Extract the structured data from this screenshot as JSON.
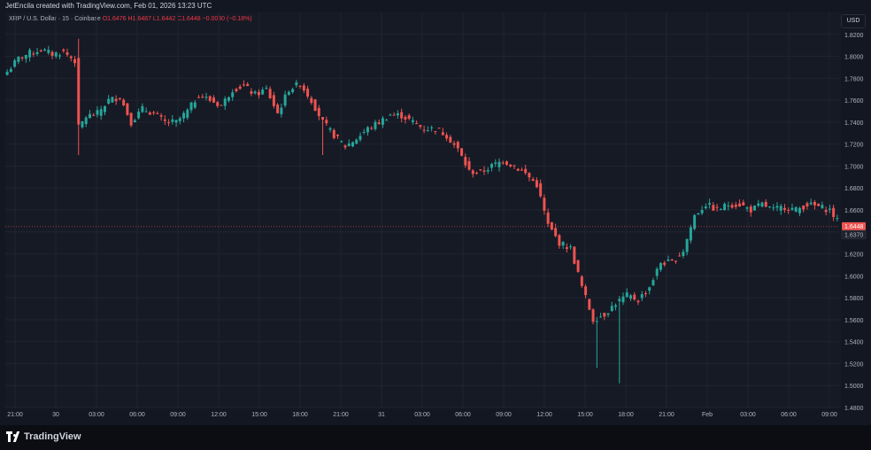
{
  "header": {
    "caption": "JetEncila created with TradingView.com, Feb 01, 2026 13:23 UTC"
  },
  "legend": {
    "symbol": "XRP / U.S. Dollar · 15 · Coinbase",
    "ohlc": "O1.6476 H1.6487 L1.6442 C1.6448 −0.0030 (−0.18%)"
  },
  "currency_button": "USD",
  "price_labels": {
    "current": "1.6448",
    "secondary": "1.6370"
  },
  "footer": {
    "brand": "TradingView"
  },
  "colors": {
    "up": "#26a69a",
    "down": "#ef5350",
    "background": "#161a25",
    "grid": "#1f2430",
    "axis_text": "#b2b5be"
  },
  "chart_data": {
    "type": "candlestick",
    "title": "XRP / U.S. Dollar · 15 · Coinbase",
    "ylim": [
      1.48,
      1.84
    ],
    "yticks": [
      "1.4800",
      "1.5000",
      "1.5200",
      "1.5400",
      "1.5600",
      "1.5800",
      "1.6000",
      "1.6200",
      "1.6400",
      "1.6600",
      "1.6800",
      "1.7000",
      "1.7200",
      "1.7400",
      "1.7600",
      "1.7800",
      "1.8000",
      "1.8200"
    ],
    "xticks": [
      "21:00",
      "30",
      "03:00",
      "06:00",
      "09:00",
      "12:00",
      "15:00",
      "18:00",
      "21:00",
      "31",
      "03:00",
      "06:00",
      "09:00",
      "12:00",
      "15:00",
      "18:00",
      "21:00",
      "Feb",
      "03:00",
      "06:00",
      "09:00"
    ],
    "grid": true,
    "series": [
      {
        "t": 0,
        "v": 1.786
      },
      {
        "t": 3,
        "v": 1.798
      },
      {
        "t": 6,
        "v": 1.803
      },
      {
        "t": 9,
        "v": 1.806
      },
      {
        "t": 12,
        "v": 1.802
      },
      {
        "t": 15,
        "v": 1.804
      },
      {
        "t": 18,
        "v": 1.796
      },
      {
        "t": 19,
        "v": 1.735
      },
      {
        "t": 21,
        "v": 1.745
      },
      {
        "t": 24,
        "v": 1.748
      },
      {
        "t": 27,
        "v": 1.76
      },
      {
        "t": 30,
        "v": 1.763
      },
      {
        "t": 33,
        "v": 1.74
      },
      {
        "t": 36,
        "v": 1.752
      },
      {
        "t": 39,
        "v": 1.748
      },
      {
        "t": 42,
        "v": 1.74
      },
      {
        "t": 45,
        "v": 1.74
      },
      {
        "t": 48,
        "v": 1.75
      },
      {
        "t": 51,
        "v": 1.765
      },
      {
        "t": 54,
        "v": 1.76
      },
      {
        "t": 57,
        "v": 1.755
      },
      {
        "t": 60,
        "v": 1.77
      },
      {
        "t": 63,
        "v": 1.773
      },
      {
        "t": 66,
        "v": 1.765
      },
      {
        "t": 69,
        "v": 1.77
      },
      {
        "t": 72,
        "v": 1.748
      },
      {
        "t": 75,
        "v": 1.77
      },
      {
        "t": 78,
        "v": 1.775
      },
      {
        "t": 81,
        "v": 1.76
      },
      {
        "t": 84,
        "v": 1.74
      },
      {
        "t": 87,
        "v": 1.728
      },
      {
        "t": 90,
        "v": 1.718
      },
      {
        "t": 93,
        "v": 1.725
      },
      {
        "t": 96,
        "v": 1.734
      },
      {
        "t": 99,
        "v": 1.74
      },
      {
        "t": 102,
        "v": 1.747
      },
      {
        "t": 105,
        "v": 1.746
      },
      {
        "t": 108,
        "v": 1.74
      },
      {
        "t": 111,
        "v": 1.734
      },
      {
        "t": 114,
        "v": 1.734
      },
      {
        "t": 117,
        "v": 1.728
      },
      {
        "t": 120,
        "v": 1.715
      },
      {
        "t": 123,
        "v": 1.695
      },
      {
        "t": 126,
        "v": 1.694
      },
      {
        "t": 129,
        "v": 1.7
      },
      {
        "t": 132,
        "v": 1.705
      },
      {
        "t": 135,
        "v": 1.7
      },
      {
        "t": 138,
        "v": 1.693
      },
      {
        "t": 141,
        "v": 1.683
      },
      {
        "t": 144,
        "v": 1.646
      },
      {
        "t": 147,
        "v": 1.63
      },
      {
        "t": 150,
        "v": 1.625
      },
      {
        "t": 153,
        "v": 1.59
      },
      {
        "t": 156,
        "v": 1.56
      },
      {
        "t": 159,
        "v": 1.565
      },
      {
        "t": 162,
        "v": 1.575
      },
      {
        "t": 165,
        "v": 1.582
      },
      {
        "t": 168,
        "v": 1.578
      },
      {
        "t": 171,
        "v": 1.59
      },
      {
        "t": 174,
        "v": 1.612
      },
      {
        "t": 177,
        "v": 1.612
      },
      {
        "t": 180,
        "v": 1.623
      },
      {
        "t": 183,
        "v": 1.655
      },
      {
        "t": 186,
        "v": 1.665
      },
      {
        "t": 189,
        "v": 1.66
      },
      {
        "t": 192,
        "v": 1.665
      },
      {
        "t": 195,
        "v": 1.665
      },
      {
        "t": 198,
        "v": 1.66
      },
      {
        "t": 201,
        "v": 1.665
      },
      {
        "t": 204,
        "v": 1.66
      },
      {
        "t": 207,
        "v": 1.663
      },
      {
        "t": 210,
        "v": 1.66
      },
      {
        "t": 213,
        "v": 1.665
      },
      {
        "t": 216,
        "v": 1.663
      },
      {
        "t": 219,
        "v": 1.66
      },
      {
        "t": 221,
        "v": 1.65
      },
      {
        "t": 222,
        "v": 1.645
      }
    ]
  }
}
